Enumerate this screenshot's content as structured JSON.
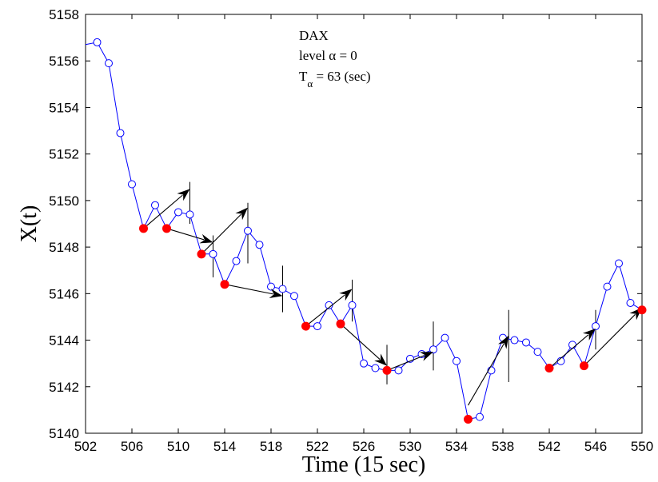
{
  "chart_data": {
    "type": "line",
    "xlabel": "Time  (15 sec)",
    "ylabel": "X(t)",
    "xlim": [
      502,
      550
    ],
    "ylim": [
      5140,
      5158
    ],
    "xticks": [
      502,
      506,
      510,
      514,
      518,
      522,
      526,
      530,
      534,
      538,
      542,
      546,
      550
    ],
    "yticks": [
      5140,
      5142,
      5144,
      5146,
      5148,
      5150,
      5152,
      5154,
      5156,
      5158
    ],
    "grid": false,
    "legend": "none",
    "annotations": {
      "line1": "DAX",
      "line2": "level α = 0",
      "line3_main": "T",
      "line3_sub": "α",
      "line3_rest": " = 63 (sec)"
    },
    "colors": {
      "series": "#0000ff",
      "marker_red": "#ff0000",
      "arrows": "#000000"
    },
    "series": [
      {
        "marker": "open-circle",
        "x": [
          502,
          503,
          504,
          505,
          506,
          507,
          508,
          509,
          510,
          511,
          512,
          513,
          514,
          515,
          516,
          517,
          518,
          519,
          520,
          521,
          522,
          523,
          524,
          525,
          526,
          527,
          528,
          529,
          530,
          531,
          532,
          533,
          534,
          535,
          536,
          537,
          538,
          539,
          540,
          541,
          542,
          543,
          544,
          545,
          546,
          547,
          548,
          549,
          550
        ],
        "values": [
          5156.7,
          5156.8,
          5155.9,
          5152.9,
          5150.7,
          5148.8,
          5149.8,
          5148.8,
          5149.5,
          5149.4,
          5147.7,
          5147.7,
          5146.4,
          5147.4,
          5148.7,
          5148.1,
          5146.3,
          5146.2,
          5145.9,
          5144.6,
          5144.6,
          5145.5,
          5144.7,
          5145.5,
          5143.0,
          5142.8,
          5142.7,
          5142.7,
          5143.2,
          5143.4,
          5143.6,
          5144.1,
          5143.1,
          5140.6,
          5140.7,
          5142.7,
          5144.1,
          5144.0,
          5143.9,
          5143.5,
          5142.8,
          5143.1,
          5143.8,
          5142.9,
          5144.6,
          5146.3,
          5147.3,
          5145.6,
          5145.3
        ]
      }
    ],
    "red_points": {
      "x": [
        507,
        509,
        512,
        514,
        521,
        524,
        528,
        535,
        542,
        545,
        550
      ],
      "values": [
        5148.8,
        5148.8,
        5147.7,
        5146.4,
        5144.6,
        5144.7,
        5142.7,
        5140.6,
        5142.8,
        5142.9,
        5145.3
      ]
    },
    "arrows": [
      {
        "from": [
          507,
          5148.8
        ],
        "to": [
          511,
          5150.5
        ]
      },
      {
        "from": [
          509,
          5148.8
        ],
        "to": [
          513,
          5148.2
        ]
      },
      {
        "from": [
          512,
          5147.7
        ],
        "to": [
          516,
          5149.7
        ]
      },
      {
        "from": [
          514,
          5146.4
        ],
        "to": [
          519,
          5145.9
        ]
      },
      {
        "from": [
          521,
          5144.6
        ],
        "to": [
          525,
          5146.2
        ]
      },
      {
        "from": [
          524,
          5144.7
        ],
        "to": [
          528,
          5142.9
        ]
      },
      {
        "from": [
          528,
          5142.7
        ],
        "to": [
          532,
          5143.5
        ]
      },
      {
        "from": [
          535,
          5141.2
        ],
        "to": [
          538.5,
          5144.2
        ]
      },
      {
        "from": [
          542,
          5142.8
        ],
        "to": [
          546,
          5144.5
        ]
      },
      {
        "from": [
          545,
          5142.9
        ],
        "to": [
          550,
          5145.4
        ]
      }
    ],
    "vlines": [
      {
        "x": 511,
        "y1": 5149.0,
        "y2": 5150.8
      },
      {
        "x": 513,
        "y1": 5146.7,
        "y2": 5148.5
      },
      {
        "x": 516,
        "y1": 5147.3,
        "y2": 5149.9
      },
      {
        "x": 519,
        "y1": 5145.2,
        "y2": 5147.2
      },
      {
        "x": 525,
        "y1": 5144.8,
        "y2": 5146.6
      },
      {
        "x": 528,
        "y1": 5142.1,
        "y2": 5143.8
      },
      {
        "x": 532,
        "y1": 5142.7,
        "y2": 5144.8
      },
      {
        "x": 538.5,
        "y1": 5142.2,
        "y2": 5145.3
      },
      {
        "x": 546,
        "y1": 5143.6,
        "y2": 5145.3
      },
      {
        "x": 550,
        "y1": 5144.3,
        "y2": 5146.9
      }
    ]
  }
}
